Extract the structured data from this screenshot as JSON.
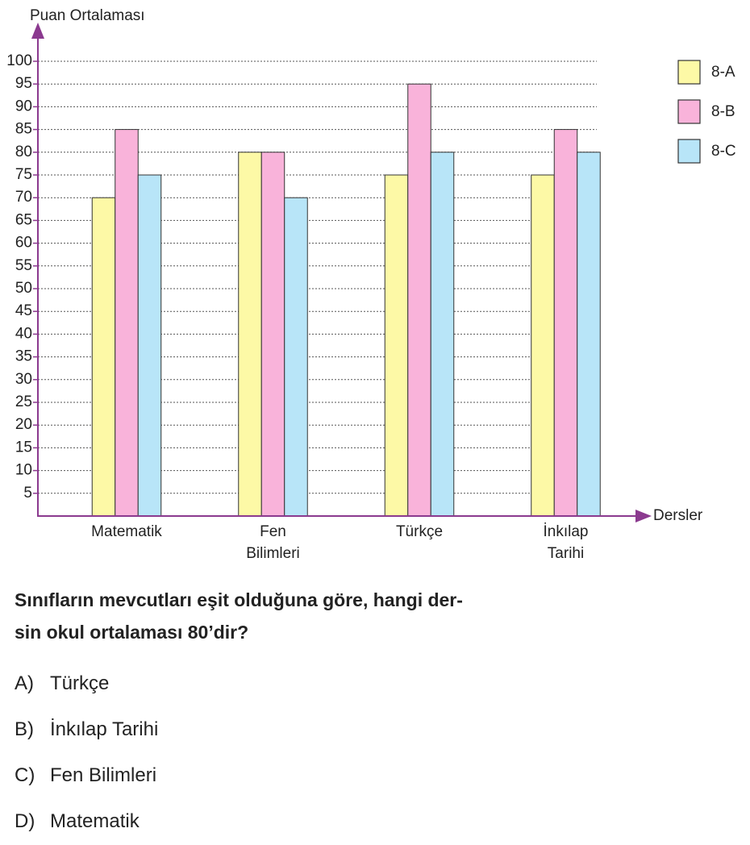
{
  "chart_data": {
    "type": "bar",
    "y_label": "Puan Ortalaması",
    "x_label": "Dersler",
    "categories": [
      "Matematik",
      "Fen Bilimleri",
      "Türkçe",
      "İnkılap Tarihi"
    ],
    "series": [
      {
        "name": "8-A",
        "color": "#fdf9a6",
        "values": [
          70,
          80,
          75,
          75
        ]
      },
      {
        "name": "8-B",
        "color": "#f9b3da",
        "values": [
          85,
          80,
          95,
          85
        ]
      },
      {
        "name": "8-C",
        "color": "#b8e5f8",
        "values": [
          75,
          70,
          80,
          80
        ]
      }
    ],
    "ylim": [
      0,
      100
    ],
    "yticks": [
      5,
      10,
      15,
      20,
      25,
      30,
      35,
      40,
      45,
      50,
      55,
      60,
      65,
      70,
      75,
      80,
      85,
      90,
      95,
      100
    ],
    "grid": true,
    "legend": "right"
  },
  "question": {
    "lines": [
      "Sınıfların mevcutları eşit olduğuna göre, hangi der-",
      "sin okul ortalaması 80’dir?"
    ],
    "options": [
      {
        "letter": "A)",
        "text": "Türkçe"
      },
      {
        "letter": "B)",
        "text": "İnkılap Tarihi"
      },
      {
        "letter": "C)",
        "text": "Fen Bilimleri"
      },
      {
        "letter": "D)",
        "text": "Matematik"
      }
    ]
  }
}
